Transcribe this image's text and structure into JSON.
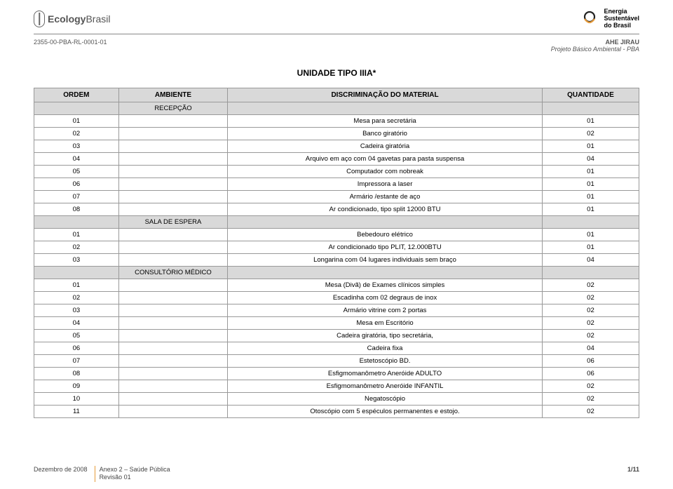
{
  "logo_left": {
    "brand_bold": "Ecology",
    "brand_light": "Brasil"
  },
  "logo_right": {
    "line1": "Energia",
    "line2": "Sustentável",
    "line3": "do Brasil"
  },
  "subhead": {
    "code": "2355-00-PBA-RL-0001-01",
    "right1": "AHE JIRAU",
    "right2": "Projeto Básico Ambiental - PBA"
  },
  "content_title": "UNIDADE TIPO IIIA*",
  "table": {
    "headers": [
      "ORDEM",
      "AMBIENTE",
      "DISCRIMINAÇÃO DO MATERIAL",
      "QUANTIDADE"
    ],
    "rows": [
      {
        "type": "section",
        "label": "RECEPÇÃO"
      },
      {
        "type": "data",
        "ordem": "01",
        "disc": "Mesa para secretária",
        "qty": "01"
      },
      {
        "type": "data",
        "ordem": "02",
        "disc": "Banco giratório",
        "qty": "02"
      },
      {
        "type": "data",
        "ordem": "03",
        "disc": "Cadeira giratória",
        "qty": "01"
      },
      {
        "type": "data",
        "ordem": "04",
        "disc": "Arquivo em aço com 04 gavetas para pasta suspensa",
        "qty": "04"
      },
      {
        "type": "data",
        "ordem": "05",
        "disc": "Computador com nobreak",
        "qty": "01"
      },
      {
        "type": "data",
        "ordem": "06",
        "disc": "Impressora a laser",
        "qty": "01"
      },
      {
        "type": "data",
        "ordem": "07",
        "disc": "Armário /estante de aço",
        "qty": "01"
      },
      {
        "type": "data",
        "ordem": "08",
        "disc": "Ar condicionado, tipo split 12000 BTU",
        "qty": "01"
      },
      {
        "type": "section",
        "label": "SALA DE ESPERA"
      },
      {
        "type": "data",
        "ordem": "01",
        "disc": "Bebedouro elétrico",
        "qty": "01"
      },
      {
        "type": "data",
        "ordem": "02",
        "disc": "Ar condicionado tipo PLIT, 12.000BTU",
        "qty": "01"
      },
      {
        "type": "data",
        "ordem": "03",
        "disc": "Longarina com 04 lugares individuais sem braço",
        "qty": "04"
      },
      {
        "type": "section",
        "label": "CONSULTÓRIO MÉDICO"
      },
      {
        "type": "data",
        "ordem": "01",
        "disc": "Mesa (Divã) de Exames clínicos simples",
        "qty": "02"
      },
      {
        "type": "data",
        "ordem": "02",
        "disc": "Escadinha com 02 degraus de inox",
        "qty": "02"
      },
      {
        "type": "data",
        "ordem": "03",
        "disc": "Armário vitrine com 2 portas",
        "qty": "02"
      },
      {
        "type": "data",
        "ordem": "04",
        "disc": "Mesa em Escritório",
        "qty": "02"
      },
      {
        "type": "data",
        "ordem": "05",
        "disc": "Cadeira giratória, tipo secretária,",
        "qty": "02"
      },
      {
        "type": "data",
        "ordem": "06",
        "disc": "Cadeira fixa",
        "qty": "04"
      },
      {
        "type": "data",
        "ordem": "07",
        "disc": "Estetoscópio BD.",
        "qty": "06"
      },
      {
        "type": "data",
        "ordem": "08",
        "disc": "Esfigmomanômetro Aneróide ADULTO",
        "qty": "06"
      },
      {
        "type": "data",
        "ordem": "09",
        "disc": "Esfigmomanômetro Aneróide INFANTIL",
        "qty": "02"
      },
      {
        "type": "data",
        "ordem": "10",
        "disc": "Negatoscópio",
        "qty": "02"
      },
      {
        "type": "data",
        "ordem": "11",
        "disc": "Otoscópio com 5 espéculos permanentes e estojo.",
        "qty": "02"
      }
    ]
  },
  "footer": {
    "date": "Dezembro de 2008",
    "annex": "Anexo 2 – Saúde Pública",
    "rev": "Revisão 01",
    "page": "1/11"
  },
  "colors": {
    "header_gray": "#d9d9d9",
    "border_gray": "#999999",
    "divider_gray": "#888888",
    "accent_orange": "#e69b3a",
    "text_muted": "#555555"
  }
}
